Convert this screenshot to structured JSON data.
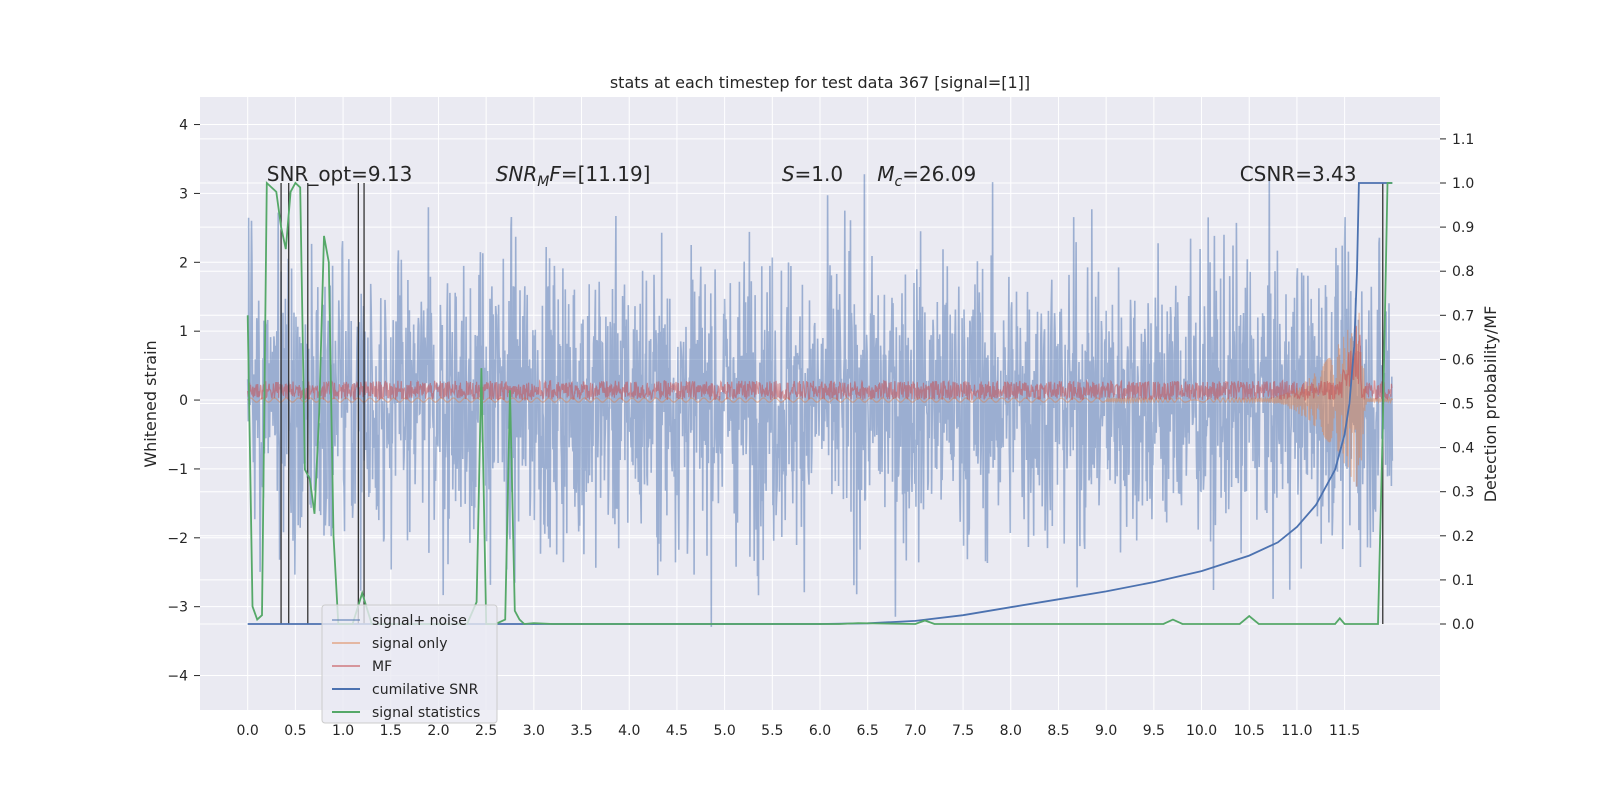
{
  "chart_data": {
    "type": "line",
    "title": "stats at each timestep for test data 367 [signal=[1]]",
    "ylabel_left": "Whitened strain",
    "ylabel_right": "Detection probability/MF",
    "xlim": [
      -0.5,
      12.5
    ],
    "ylim_left": [
      -4.5,
      4.4
    ],
    "ylim_right": [
      -0.195,
      1.195
    ],
    "x_ticks": [
      "0.0",
      "0.5",
      "1.0",
      "1.5",
      "2.0",
      "2.5",
      "3.0",
      "3.5",
      "4.0",
      "4.5",
      "5.0",
      "5.5",
      "6.0",
      "6.5",
      "7.0",
      "7.5",
      "8.0",
      "8.5",
      "9.0",
      "9.5",
      "10.0",
      "10.5",
      "11.0",
      "11.5"
    ],
    "y_ticks_left": [
      "−4",
      "−3",
      "−2",
      "−1",
      "0",
      "1",
      "2",
      "3",
      "4"
    ],
    "y_ticks_right": [
      "0.0",
      "0.1",
      "0.2",
      "0.3",
      "0.4",
      "0.5",
      "0.6",
      "0.7",
      "0.8",
      "0.9",
      "1.0",
      "1.1"
    ],
    "grid": true,
    "legend_position": "lower-left",
    "annotations": [
      {
        "prefix": "SNR_opt=9.13",
        "x": 0.2,
        "y": 1.0
      },
      {
        "var": "SNR",
        "sub": "M",
        "var2": "F",
        "suffix": "=[11.19]",
        "x": 2.6,
        "y": 1.0
      },
      {
        "var": "S",
        "suffix": "=1.0",
        "x": 5.6,
        "y": 1.0
      },
      {
        "var": "M",
        "sub": "c",
        "suffix": "=26.09",
        "x": 6.6,
        "y": 1.0
      },
      {
        "prefix": "CSNR=3.43",
        "x": 10.4,
        "y": 1.0
      }
    ],
    "series": [
      {
        "name": "signal+ noise",
        "color": "#4c72b0",
        "alpha": 0.5,
        "axis": "left",
        "envelope_rms": 1.05
      },
      {
        "name": "signal only",
        "color": "#dd8452",
        "alpha": 0.5,
        "axis": "left",
        "growth_start": 10.6,
        "merger": 11.65
      },
      {
        "name": "MF",
        "color": "#c44e52",
        "alpha": 0.55,
        "axis": "left",
        "level": [
          0.0,
          0.28
        ]
      },
      {
        "name": "cumilative SNR",
        "color": "#4c72b0",
        "axis": "right",
        "x": [
          0.0,
          6.0,
          6.5,
          7.0,
          7.5,
          8.0,
          8.5,
          9.0,
          9.5,
          10.0,
          10.5,
          10.8,
          11.0,
          11.2,
          11.4,
          11.5,
          11.55,
          11.6,
          11.63,
          11.65,
          11.7,
          12.0
        ],
        "y": [
          0.0,
          0.0,
          0.0015,
          0.007,
          0.02,
          0.038,
          0.056,
          0.074,
          0.095,
          0.12,
          0.155,
          0.185,
          0.22,
          0.27,
          0.35,
          0.43,
          0.5,
          0.63,
          0.8,
          1.0,
          1.0,
          1.0
        ]
      },
      {
        "name": "signal statistics",
        "color": "#55a868",
        "axis": "right",
        "x": [
          0.0,
          0.05,
          0.1,
          0.15,
          0.2,
          0.25,
          0.3,
          0.35,
          0.4,
          0.45,
          0.5,
          0.55,
          0.6,
          0.65,
          0.7,
          0.75,
          0.8,
          0.85,
          0.9,
          0.95,
          1.0,
          1.1,
          1.2,
          1.3,
          2.3,
          2.4,
          2.45,
          2.5,
          2.6,
          2.7,
          2.75,
          2.8,
          2.85,
          2.9,
          3.0,
          3.2,
          6.2,
          6.4,
          7.0,
          7.1,
          7.2,
          9.6,
          9.7,
          9.8,
          10.4,
          10.5,
          10.6,
          11.4,
          11.45,
          11.5,
          11.85,
          11.9,
          11.95,
          12.0
        ],
        "y": [
          0.7,
          0.04,
          0.01,
          0.02,
          1.0,
          0.99,
          0.98,
          0.9,
          0.85,
          0.98,
          1.0,
          0.99,
          0.35,
          0.33,
          0.25,
          0.48,
          0.88,
          0.82,
          0.2,
          0.0,
          0.0,
          0.0,
          0.07,
          0.0,
          0.0,
          0.05,
          0.58,
          0.0,
          0.0,
          0.01,
          0.53,
          0.03,
          0.01,
          0.0,
          0.002,
          0.0,
          0.0,
          0.002,
          0.0,
          0.008,
          0.0,
          0.0,
          0.01,
          0.0,
          0.0,
          0.018,
          0.0,
          0.0,
          0.013,
          0.0,
          0.0,
          0.45,
          1.0,
          1.0
        ]
      }
    ],
    "threshold_crossings_x": [
      0.35,
      0.43,
      0.63,
      1.16,
      1.22,
      11.9
    ]
  }
}
